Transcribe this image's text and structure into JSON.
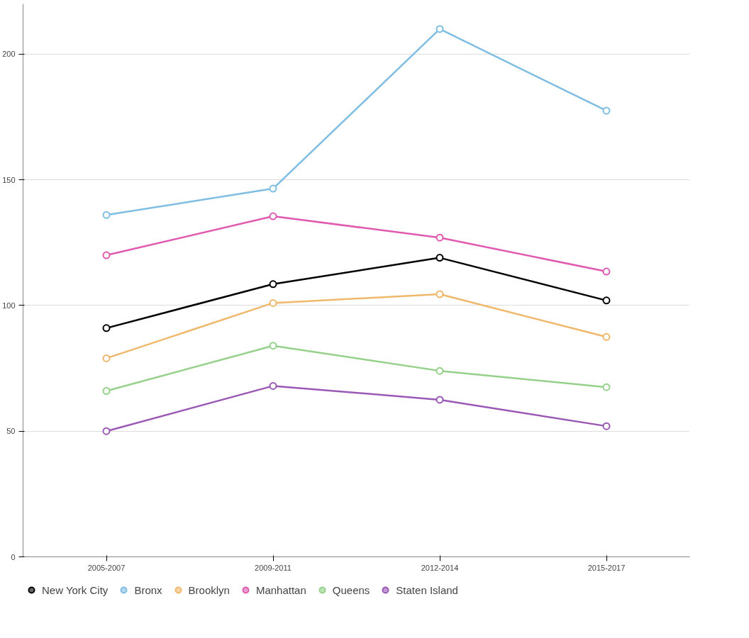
{
  "chart_data": {
    "type": "line",
    "categories": [
      "2005-2007",
      "2009-2011",
      "2012-2014",
      "2015-2017"
    ],
    "series": [
      {
        "name": "New York City",
        "color": "#000000",
        "values": [
          91,
          108.5,
          119,
          102
        ]
      },
      {
        "name": "Bronx",
        "color": "#7fbde3",
        "values": [
          136,
          146.5,
          210,
          177.5
        ]
      },
      {
        "name": "Brooklyn",
        "color": "#f0b86a",
        "values": [
          79,
          101,
          104.5,
          87.5
        ]
      },
      {
        "name": "Manhattan",
        "color": "#e05ab0",
        "values": [
          120,
          135.5,
          127,
          113.5
        ]
      },
      {
        "name": "Queens",
        "color": "#95d18a",
        "values": [
          66,
          84,
          74,
          67.5
        ]
      },
      {
        "name": "Staten Island",
        "color": "#9b59b6",
        "values": [
          50,
          68,
          62.5,
          52
        ]
      }
    ],
    "ylim": [
      0,
      220
    ],
    "yticks": [
      0,
      50,
      100,
      150,
      200
    ],
    "grid": "y",
    "legend": "bottom",
    "marker": "circle",
    "line_style": "solid"
  }
}
